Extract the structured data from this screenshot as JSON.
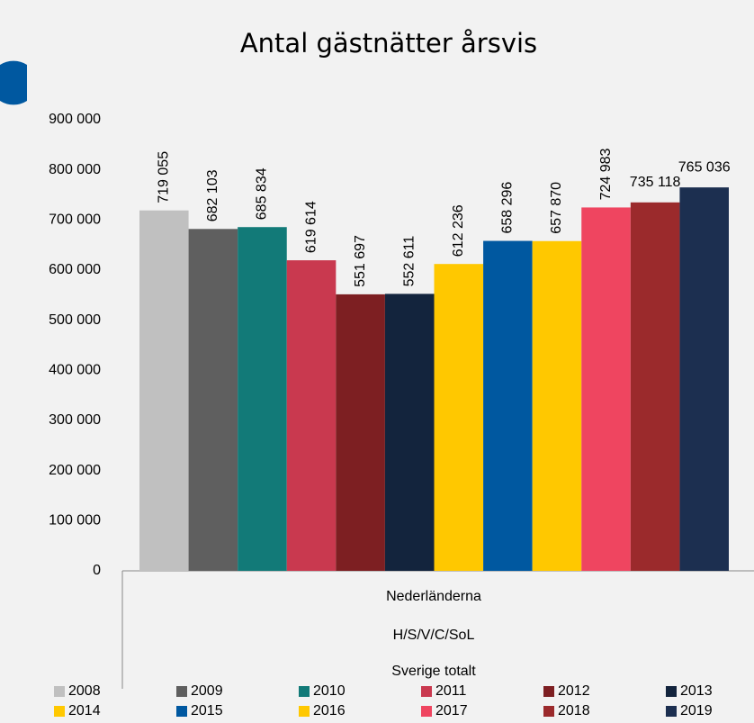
{
  "chart_data": {
    "type": "bar",
    "title": "Antal gästnätter årsvis",
    "categories": [
      "Nederländerna"
    ],
    "category_levels": [
      [
        "H/S/V/C/SoL"
      ],
      [
        "Sverige totalt"
      ]
    ],
    "ylim": [
      0,
      900000
    ],
    "yticks": [
      0,
      {
        "value": 100000,
        "label": "100 000"
      },
      {
        "value": 200000,
        "label": "200 000"
      },
      {
        "value": 300000,
        "label": "300 000"
      },
      {
        "value": 400000,
        "label": "400 000"
      },
      {
        "value": 500000,
        "label": "500 000"
      },
      {
        "value": 600000,
        "label": "600 000"
      },
      {
        "value": 700000,
        "label": "700 000"
      },
      {
        "value": 800000,
        "label": "800 000"
      },
      {
        "value": 900000,
        "label": "900 000"
      }
    ],
    "grid": false,
    "legend": "bottom",
    "series": [
      {
        "name": "2008",
        "color": "#c0c0c0",
        "values": [
          719055
        ],
        "value_labels": [
          "719 055"
        ]
      },
      {
        "name": "2009",
        "color": "#5f5f5f",
        "values": [
          682103
        ],
        "value_labels": [
          "682 103"
        ]
      },
      {
        "name": "2010",
        "color": "#127a78",
        "values": [
          685834
        ],
        "value_labels": [
          "685 834"
        ]
      },
      {
        "name": "2011",
        "color": "#c9394f",
        "values": [
          619614
        ],
        "value_labels": [
          "619 614"
        ]
      },
      {
        "name": "2012",
        "color": "#7d1f22",
        "values": [
          551697
        ],
        "value_labels": [
          "551 697"
        ]
      },
      {
        "name": "2013",
        "color": "#13243d",
        "values": [
          552611
        ],
        "value_labels": [
          "552 611"
        ]
      },
      {
        "name": "2014",
        "color": "#ffc800",
        "values": [
          612236
        ],
        "value_labels": [
          "612 236"
        ]
      },
      {
        "name": "2015",
        "color": "#0058a0",
        "values": [
          658296
        ],
        "value_labels": [
          "658 296"
        ]
      },
      {
        "name": "2016",
        "color": "#ffc800",
        "values": [
          657870
        ],
        "value_labels": [
          "657 870"
        ]
      },
      {
        "name": "2017",
        "color": "#ef4560",
        "values": [
          724983
        ],
        "value_labels": [
          "724 983"
        ]
      },
      {
        "name": "2018",
        "color": "#9b2a2c",
        "values": [
          735118
        ],
        "value_labels": [
          "735 118"
        ]
      },
      {
        "name": "2019",
        "color": "#1c2f50",
        "values": [
          765036
        ],
        "value_labels": [
          "765 036"
        ]
      }
    ]
  }
}
